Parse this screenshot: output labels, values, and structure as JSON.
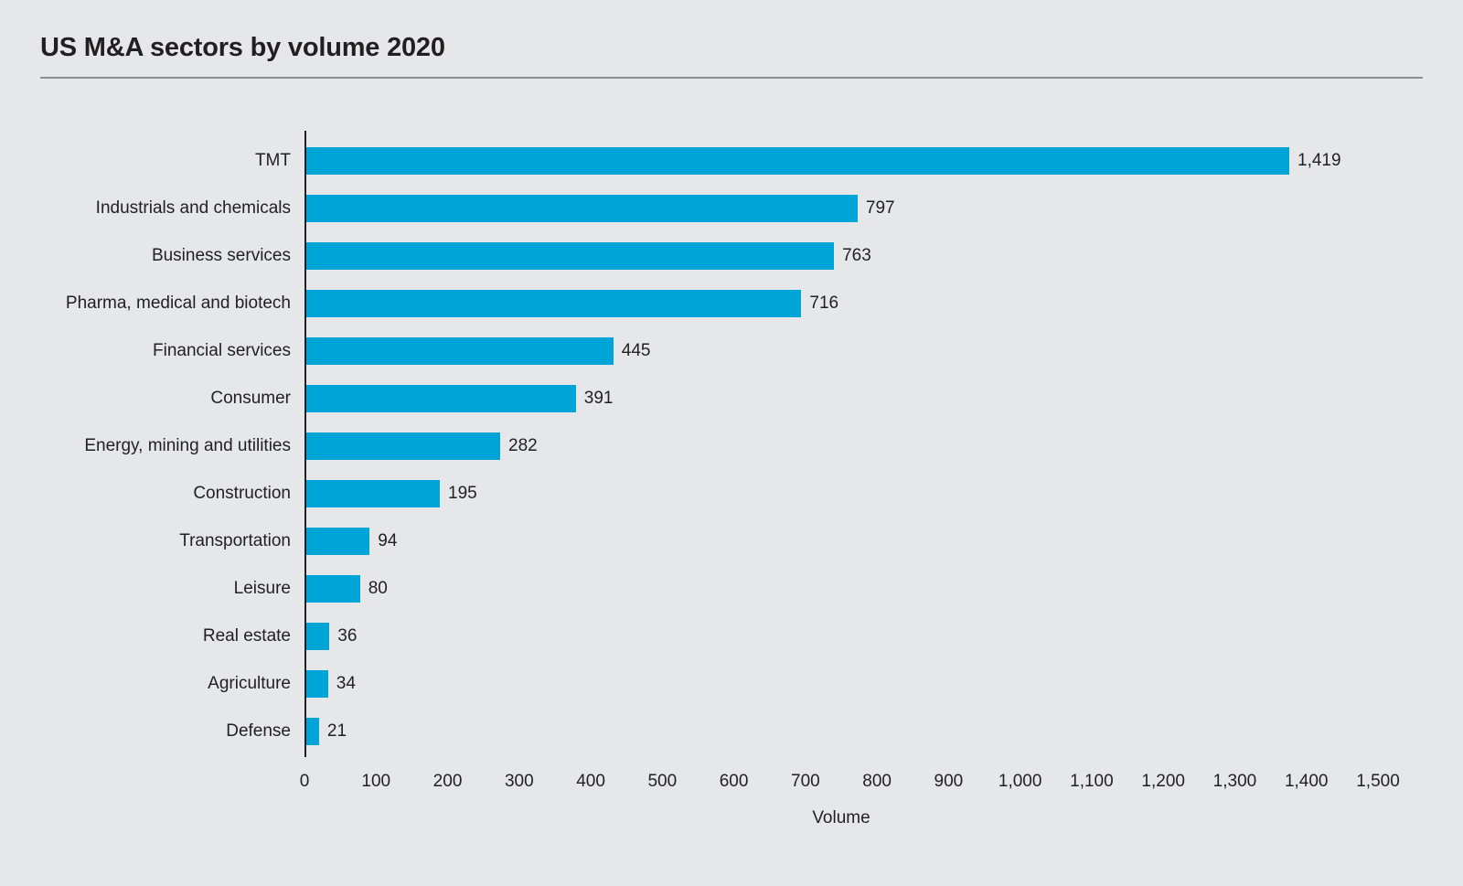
{
  "page": {
    "background": "#e6e7e8"
  },
  "header": {
    "title": "US M&A sectors by volume 2020"
  },
  "chart_data": {
    "type": "bar",
    "orientation": "horizontal",
    "title": "US M&A sectors by volume 2020",
    "categories": [
      "TMT",
      "Industrials and chemicals",
      "Business services",
      "Pharma, medical and biotech",
      "Financial services",
      "Consumer",
      "Energy, mining and utilities",
      "Construction",
      "Transportation",
      "Leisure",
      "Real estate",
      "Agriculture",
      "Defense"
    ],
    "values": [
      1419,
      797,
      763,
      716,
      445,
      391,
      282,
      195,
      94,
      80,
      36,
      34,
      21
    ],
    "value_labels": [
      "1,419",
      "797",
      "763",
      "716",
      "445",
      "391",
      "282",
      "195",
      "94",
      "80",
      "36",
      "34",
      "21"
    ],
    "xlabel": "Volume",
    "ylabel": "",
    "xlim": [
      0,
      1500
    ],
    "x_ticks": [
      0,
      100,
      200,
      300,
      400,
      500,
      600,
      700,
      800,
      900,
      1000,
      1100,
      1200,
      1300,
      1400,
      1500
    ],
    "x_tick_labels": [
      "0",
      "100",
      "200",
      "300",
      "400",
      "500",
      "600",
      "700",
      "800",
      "900",
      "1,000",
      "1,100",
      "1,200",
      "1,300",
      "1,400",
      "1,500"
    ],
    "bar_color": "#00a5d8",
    "axis_color": "#231f20",
    "text_color": "#231f20",
    "grid": "off",
    "legend": "none"
  }
}
